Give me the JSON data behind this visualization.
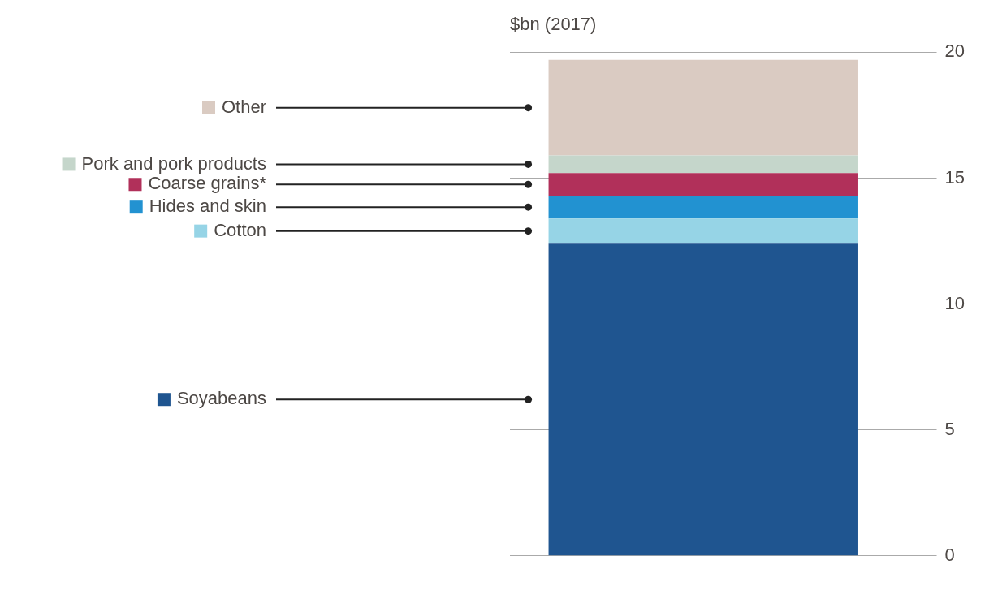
{
  "chart_data": {
    "type": "bar",
    "title": "$bn (2017)",
    "stacked": true,
    "categories": [
      null
    ],
    "series": [
      {
        "name": "Soyabeans",
        "color": "#1f5590",
        "values": [
          12.4
        ]
      },
      {
        "name": "Cotton",
        "color": "#96d4e6",
        "values": [
          1.0
        ]
      },
      {
        "name": "Hides and skin",
        "color": "#2292d1",
        "values": [
          0.9
        ]
      },
      {
        "name": "Coarse grains*",
        "color": "#b1305a",
        "values": [
          0.9
        ]
      },
      {
        "name": "Pork and pork products",
        "color": "#c5d6cb",
        "values": [
          0.7
        ]
      },
      {
        "name": "Other",
        "color": "#dacbc2",
        "values": [
          3.8
        ]
      }
    ],
    "ylim": [
      0,
      20
    ],
    "yticks": [
      0,
      5,
      10,
      15,
      20
    ],
    "grid": "y",
    "legend": "left"
  }
}
